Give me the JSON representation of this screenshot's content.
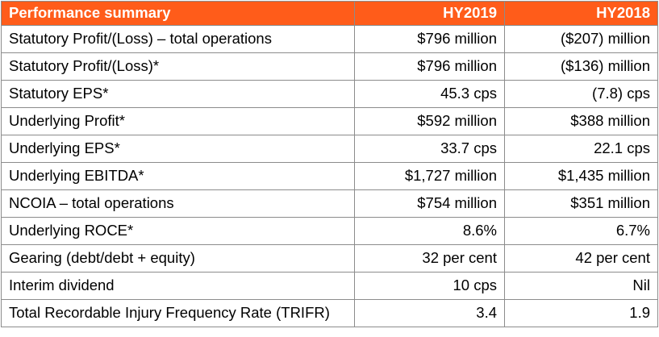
{
  "header": {
    "label": "Performance summary",
    "col1": "HY2019",
    "col2": "HY2018"
  },
  "rows": [
    {
      "label": "Statutory Profit/(Loss) – total operations",
      "hy2019": "$796 million",
      "hy2018": "($207) million"
    },
    {
      "label": "Statutory Profit/(Loss)*",
      "hy2019": "$796 million",
      "hy2018": "($136) million"
    },
    {
      "label": "Statutory EPS*",
      "hy2019": "45.3 cps",
      "hy2018": "(7.8) cps"
    },
    {
      "label": "Underlying Profit*",
      "hy2019": "$592 million",
      "hy2018": "$388 million"
    },
    {
      "label": "Underlying EPS*",
      "hy2019": "33.7 cps",
      "hy2018": "22.1 cps"
    },
    {
      "label": "Underlying EBITDA*",
      "hy2019": "$1,727 million",
      "hy2018": "$1,435 million"
    },
    {
      "label": "NCOIA – total operations",
      "hy2019": "$754 million",
      "hy2018": "$351 million"
    },
    {
      "label": "Underlying ROCE*",
      "hy2019": "8.6%",
      "hy2018": "6.7%"
    },
    {
      "label": "Gearing (debt/debt + equity)",
      "hy2019": "32 per cent",
      "hy2018": "42 per cent"
    },
    {
      "label": "Interim dividend",
      "hy2019": "10 cps",
      "hy2018": "Nil"
    },
    {
      "label": "Total Recordable Injury Frequency Rate (TRIFR)",
      "hy2019": "3.4",
      "hy2018": "1.9"
    }
  ],
  "colors": {
    "header_bg": "#ff5c1a",
    "header_text": "#ffffff",
    "border": "#8c8c8c"
  }
}
